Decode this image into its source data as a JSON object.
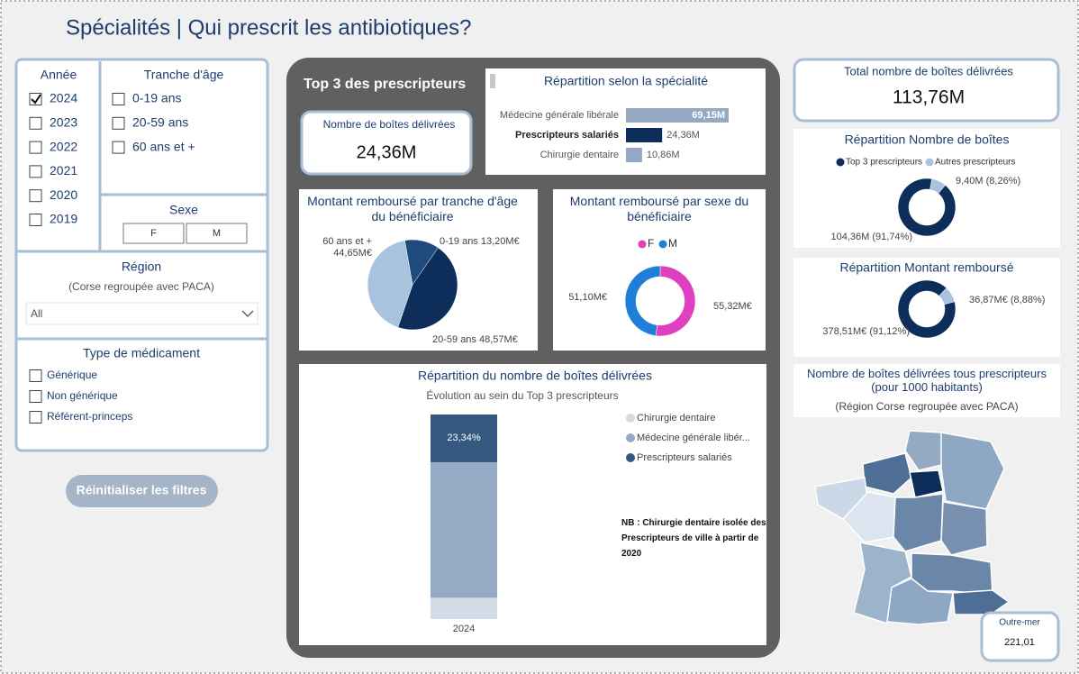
{
  "title": "Spécialités | Qui prescrit les antibiotiques?",
  "filters": {
    "year": {
      "label": "Année",
      "options": [
        "2024",
        "2023",
        "2022",
        "2021",
        "2020",
        "2019"
      ],
      "checked": [
        true,
        false,
        false,
        false,
        false,
        false
      ]
    },
    "age": {
      "label": "Tranche d'âge",
      "options": [
        "0-19 ans",
        "20-59 ans",
        "60 ans et +"
      ]
    },
    "sex": {
      "label": "Sexe",
      "options": [
        "F",
        "M"
      ]
    },
    "region": {
      "label": "Région",
      "note": "(Corse regroupée avec PACA)",
      "value": "All"
    },
    "drug_type": {
      "label": "Type de médicament",
      "options": [
        "Générique",
        "Non générique",
        "Référent-princeps"
      ]
    },
    "reset_button": "Réinitialiser les filtres"
  },
  "top3": {
    "title": "Top 3 des prescripteurs",
    "kpi": {
      "label": "Nombre de boîtes délivrées",
      "value": "24,36M"
    }
  },
  "total": {
    "label": "Total nombre de boîtes délivrées",
    "value": "113,76M"
  },
  "map": {
    "title": "Nombre de boîtes délivrées tous prescripteurs (pour 1000 habitants)",
    "note": "(Région Corse regroupée avec PACA)",
    "outre_mer": {
      "label": "Outre-mer",
      "value": "221,01"
    }
  },
  "chart_data": [
    {
      "type": "bar",
      "orientation": "horizontal",
      "title": "Répartition selon la spécialité",
      "categories": [
        "Médecine générale libérale",
        "Prescripteurs salariés",
        "Chirurgie dentaire"
      ],
      "values": [
        69.15,
        24.36,
        10.86
      ],
      "value_labels": [
        "69,15M",
        "24,36M",
        "10,86M"
      ],
      "colors": [
        "#94a9c2",
        "#0d2d5b",
        "#94a9c2"
      ]
    },
    {
      "type": "pie",
      "title": "Montant remboursé par tranche d'âge du bénéficiaire",
      "categories": [
        "0-19 ans",
        "20-59 ans",
        "60 ans et +"
      ],
      "values": [
        13.2,
        48.57,
        44.65
      ],
      "value_labels": [
        "13,20M€",
        "48,57M€",
        "44,65M€"
      ],
      "colors": [
        "#1f4a7e",
        "#0d2d5b",
        "#a9c3de"
      ]
    },
    {
      "type": "donut",
      "title": "Montant remboursé par sexe du bénéficiaire",
      "legend": true,
      "categories": [
        "F",
        "M"
      ],
      "values": [
        55.32,
        51.1
      ],
      "value_labels": [
        "55,32M€",
        "51,10M€"
      ],
      "colors": [
        "#e03fbf",
        "#1f7fd8"
      ]
    },
    {
      "type": "stacked_bar",
      "title": "Répartition du nombre de boîtes délivrées",
      "subtitle": "Évolution au sein du Top 3 prescripteurs",
      "categories": [
        "2024"
      ],
      "series": [
        {
          "name": "Chirurgie dentaire",
          "color": "#d2dce7",
          "values": [
            10.41
          ]
        },
        {
          "name": "Médecine générale libér...",
          "color": "#95aac4",
          "values": [
            66.26
          ]
        },
        {
          "name": "Prescripteurs salariés",
          "color": "#34587f",
          "values": [
            23.34
          ],
          "value_labels": [
            "23,34%"
          ]
        }
      ],
      "note": "NB : Chirurgie dentaire isolée des Prescripteurs de ville à partir de 2020"
    },
    {
      "type": "donut",
      "title": "Répartition Nombre de boîtes",
      "legend": true,
      "categories": [
        "Top 3 prescripteurs",
        "Autres prescripteurs"
      ],
      "values": [
        104.36,
        9.4
      ],
      "value_labels": [
        "104,36M (91,74%)",
        "9,40M (8,26%)"
      ],
      "colors": [
        "#0d2d5b",
        "#a9c3de"
      ]
    },
    {
      "type": "donut",
      "title": "Répartition Montant remboursé",
      "legend": false,
      "categories": [
        "Top 3 prescripteurs",
        "Autres prescripteurs"
      ],
      "values": [
        378.51,
        36.87
      ],
      "value_labels": [
        "378,51M€ (91,12%)",
        "36,87M€ (8,88%)"
      ],
      "colors": [
        "#0d2d5b",
        "#a9c3de"
      ]
    }
  ]
}
